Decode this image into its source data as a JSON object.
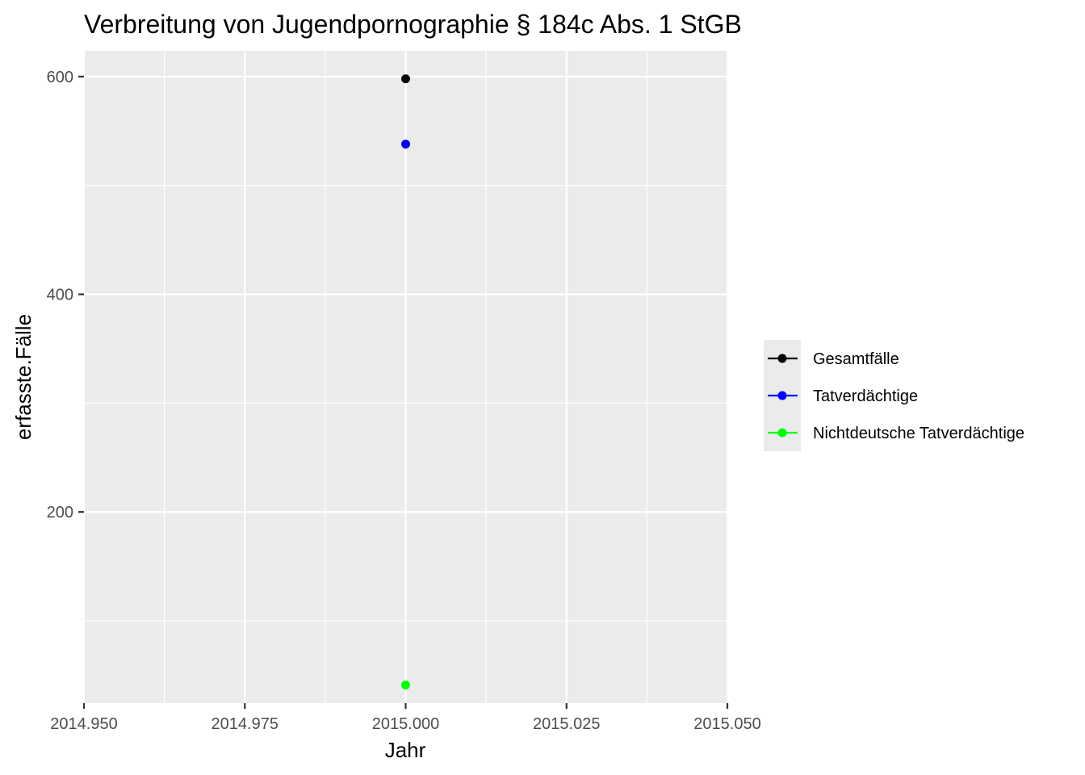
{
  "chart_data": {
    "type": "scatter",
    "title": "Verbreitung von Jugendpornographie § 184c Abs. 1 StGB",
    "xlabel": "Jahr",
    "ylabel": "erfasste.Fälle",
    "xlim": [
      2014.95,
      2015.05
    ],
    "ylim": [
      24.35,
      623.65
    ],
    "x_ticks": [
      2014.95,
      2014.975,
      2015.0,
      2015.025,
      2015.05
    ],
    "x_tick_labels": [
      "2014.950",
      "2014.975",
      "2015.000",
      "2015.025",
      "2015.050"
    ],
    "y_ticks": [
      200,
      400,
      600
    ],
    "y_tick_labels": [
      "200",
      "400",
      "600"
    ],
    "grid": true,
    "legend_position": "right",
    "series": [
      {
        "name": "Gesamtfälle",
        "color": "#000000",
        "x": [
          2015.0
        ],
        "y": [
          598
        ]
      },
      {
        "name": "Tatverdächtige",
        "color": "#0000ff",
        "x": [
          2015.0
        ],
        "y": [
          538
        ]
      },
      {
        "name": "Nichtdeutsche Tatverdächtige",
        "color": "#00ff00",
        "x": [
          2015.0
        ],
        "y": [
          41
        ]
      }
    ]
  }
}
